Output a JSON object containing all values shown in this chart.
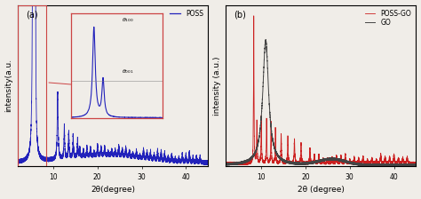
{
  "fig_width": 4.74,
  "fig_height": 2.24,
  "dpi": 100,
  "bg_color": "#f0ede8",
  "panel_a": {
    "label": "(a)",
    "xlabel": "2θ(degree)",
    "ylabel": "intensity(a.u.",
    "legend_label": "POSS",
    "line_color": "#2222bb",
    "xlim": [
      2,
      45
    ],
    "xticks": [
      10,
      20,
      30,
      40
    ]
  },
  "panel_b": {
    "label": "(b)",
    "xlabel": "2θ (degree)",
    "ylabel": "intensity (a.u.)",
    "legend_go": "GO",
    "legend_poss_go": "POSS-GO",
    "go_color": "#444444",
    "poss_go_color": "#cc2020",
    "xlim": [
      2,
      45
    ],
    "xticks": [
      10,
      20,
      30,
      40
    ]
  }
}
